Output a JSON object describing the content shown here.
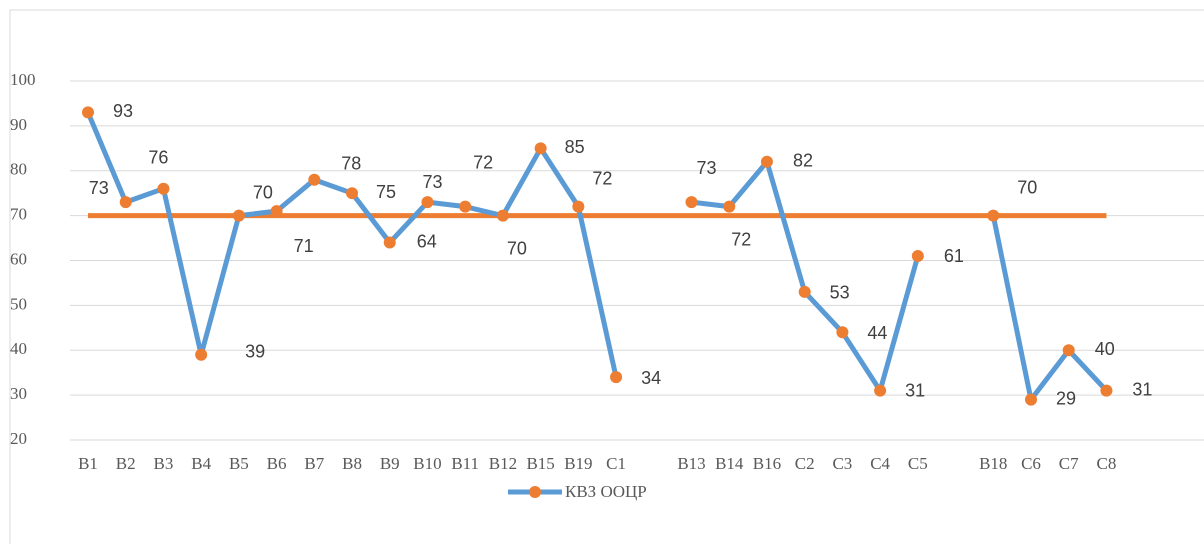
{
  "chart_data": {
    "type": "line",
    "categories": [
      "В1",
      "В2",
      "В3",
      "В4",
      "В5",
      "В6",
      "В7",
      "В8",
      "В9",
      "В10",
      "В11",
      "В12",
      "В15",
      "В19",
      "С1",
      null,
      "В13",
      "В14",
      "В16",
      "С2",
      "С3",
      "С4",
      "С5",
      null,
      "В18",
      "С6",
      "С7",
      "С8"
    ],
    "series": [
      {
        "name": "КВЗ ООЦР",
        "color": "#5b9bd5",
        "marker_color": "#ed7d31",
        "values": [
          93,
          73,
          76,
          39,
          70,
          71,
          78,
          75,
          64,
          73,
          72,
          70,
          85,
          72,
          34,
          null,
          73,
          72,
          82,
          53,
          44,
          31,
          61,
          null,
          70,
          29,
          40,
          31
        ]
      }
    ],
    "threshold": {
      "value": 70,
      "color": "#ed7d31"
    },
    "ylim": [
      20,
      100
    ],
    "yticks": [
      20,
      30,
      40,
      50,
      60,
      70,
      80,
      90,
      100
    ],
    "grid": true,
    "legend": "bottom"
  }
}
